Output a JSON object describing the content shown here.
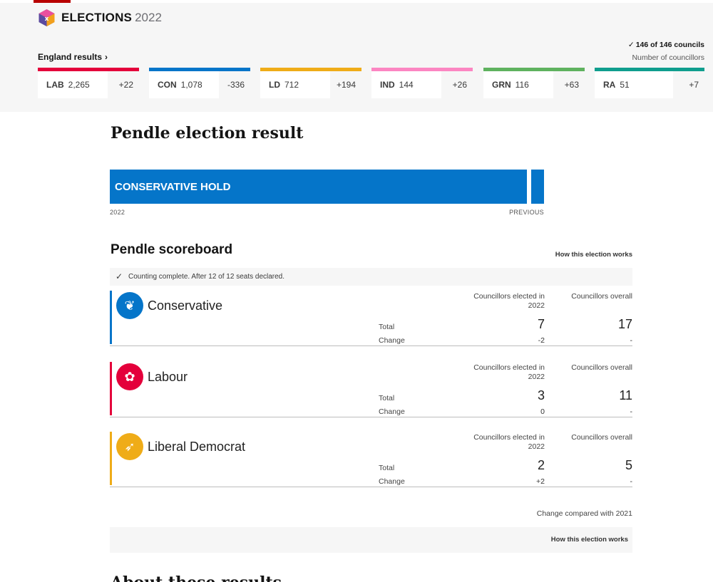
{
  "header": {
    "brand": "ELECTIONS",
    "year": "2022",
    "england_link": "England results",
    "councils_status": "146 of 146 councils",
    "councils_subtitle": "Number of councillors",
    "parties": [
      {
        "abbr": "LAB",
        "count": "2,265",
        "change": "+22",
        "color": "#e4003b"
      },
      {
        "abbr": "CON",
        "count": "1,078",
        "change": "-336",
        "color": "#0575c9"
      },
      {
        "abbr": "LD",
        "count": "712",
        "change": "+194",
        "color": "#efac18"
      },
      {
        "abbr": "IND",
        "count": "144",
        "change": "+26",
        "color": "#fc86c2"
      },
      {
        "abbr": "GRN",
        "count": "116",
        "change": "+63",
        "color": "#5fb25f"
      },
      {
        "abbr": "RA",
        "count": "51",
        "change": "+7",
        "color": "#109e8e"
      }
    ]
  },
  "main": {
    "title": "Pendle election result",
    "result_label": "CONSERVATIVE HOLD",
    "label_current": "2022",
    "label_previous": "PREVIOUS",
    "scoreboard_title": "Pendle scoreboard",
    "how_link": "How this election works",
    "status": "Counting complete. After 12 of 12 seats declared.",
    "col_elected": "Councillors elected in 2022",
    "col_overall": "Councillors overall",
    "row_total": "Total",
    "row_change": "Change",
    "results": [
      {
        "name": "Conservative",
        "color": "#0575c9",
        "icon": "conservative-tree-icon",
        "elected_total": "7",
        "elected_change": "-2",
        "overall_total": "17",
        "overall_change": "-"
      },
      {
        "name": "Labour",
        "color": "#e4003b",
        "icon": "labour-rose-icon",
        "elected_total": "3",
        "elected_change": "0",
        "overall_total": "11",
        "overall_change": "-"
      },
      {
        "name": "Liberal Democrat",
        "color": "#efac18",
        "icon": "libdem-bird-icon",
        "elected_total": "2",
        "elected_change": "+2",
        "overall_total": "5",
        "overall_change": "-"
      }
    ],
    "compare_note": "Change compared with 2021",
    "footer_link": "How this election works",
    "next_heading": "About these results"
  }
}
